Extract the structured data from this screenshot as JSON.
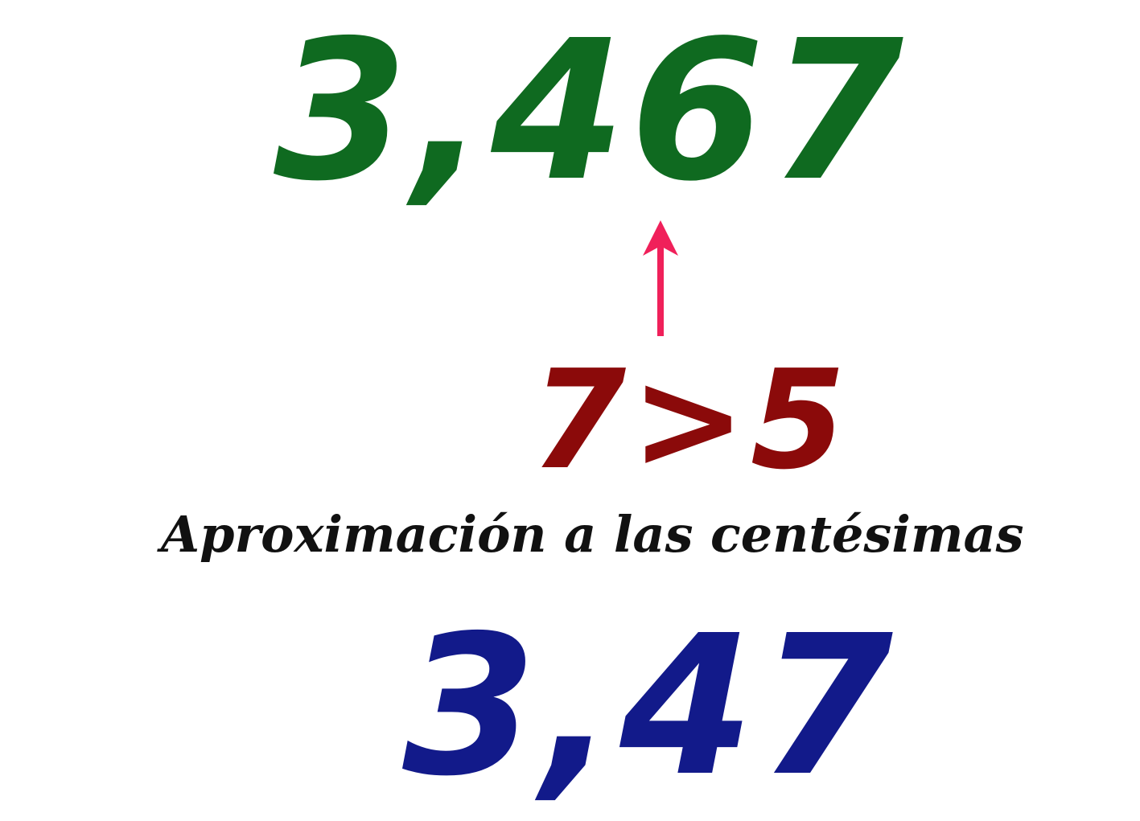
{
  "original_number": "3,467",
  "comparison": "7>5",
  "caption": "Aproximación a las centésimas",
  "result_number": "3,47",
  "colors": {
    "original": "#0f6a20",
    "comparison": "#8b0a0a",
    "caption": "#111111",
    "result": "#121a8a",
    "arrow": "#f0205a"
  },
  "icons": {
    "arrow": "up-arrow-icon"
  }
}
